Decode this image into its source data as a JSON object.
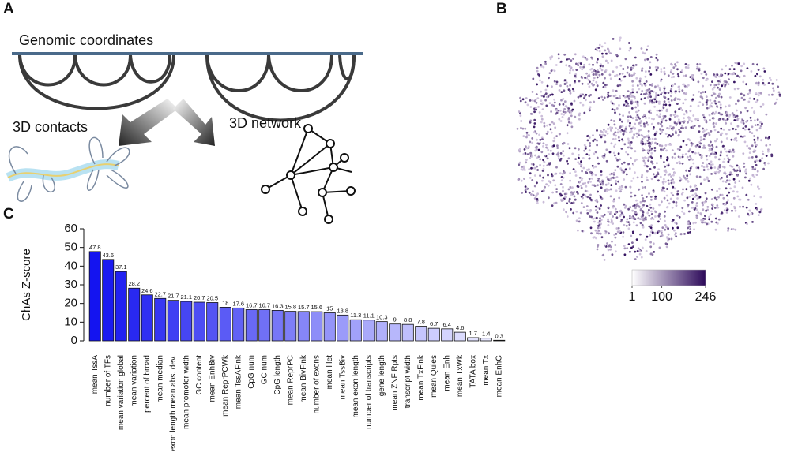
{
  "panel_labels": [
    "A",
    "B",
    "C"
  ],
  "diagram": {
    "title": "Genomic coordinates",
    "contacts_label": "3D contacts",
    "network_label": "3D network"
  },
  "colorbar": {
    "lim": [
      1,
      246
    ],
    "ticks": [
      1,
      100,
      246
    ],
    "colors": [
      "#ffffff",
      "#2d0a5a"
    ]
  },
  "chart_data": {
    "type": "bar",
    "ylabel": "ChAs Z-score",
    "categories": [
      "mean TssA",
      "number of TFs",
      "mean variation global",
      "mean variation",
      "percent of broad",
      "mean median",
      "exon length mean abs. dev.",
      "mean promoter width",
      "GC content",
      "mean EnhBiv",
      "mean ReprPCWk",
      "mean TssAFlnk",
      "CpG num",
      "GC num",
      "CpG length",
      "mean ReprPC",
      "mean BivFlnk",
      "number of exons",
      "mean Het",
      "mean TssBiv",
      "mean exon length",
      "number of transcripts",
      "gene length",
      "mean ZNF Rpts",
      "transcript width",
      "mean TxFlnk",
      "mean Quies",
      "mean Enh",
      "mean TxWk",
      "TATA box",
      "mean Tx",
      "mean EnhG"
    ],
    "values": [
      47.8,
      43.6,
      37.1,
      28.2,
      24.6,
      22.7,
      21.7,
      21.1,
      20.7,
      20.5,
      18,
      17.6,
      16.7,
      16.7,
      16.3,
      15.8,
      15.7,
      15.6,
      15,
      13.8,
      11.3,
      11.1,
      10.3,
      9,
      8.8,
      7.8,
      6.7,
      6.4,
      4.6,
      1.7,
      1.4,
      0.3
    ],
    "color_range": [
      "#1414f0",
      "#f0f0ff"
    ],
    "ylim": [
      0,
      60
    ],
    "yticks": [
      0,
      10,
      20,
      30,
      40,
      50,
      60
    ]
  }
}
